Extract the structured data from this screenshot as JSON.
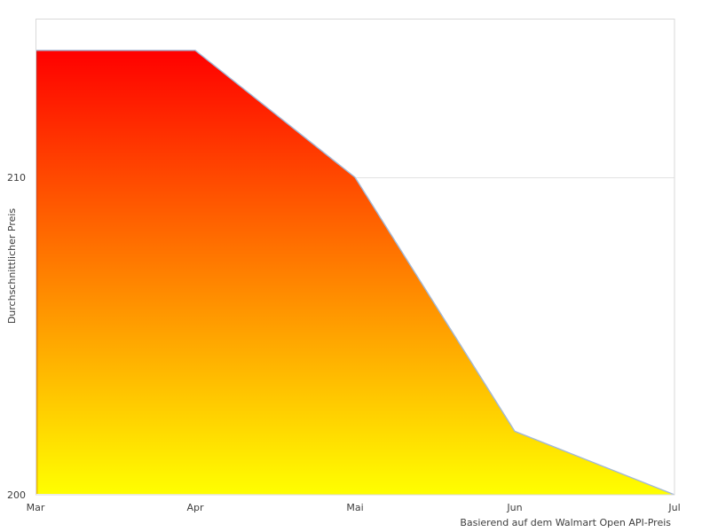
{
  "chart_data": {
    "type": "area",
    "x": [
      "Mar",
      "Apr",
      "Mai",
      "Jun",
      "Jul"
    ],
    "values": [
      214,
      214,
      210,
      202,
      200
    ],
    "xlabel": "Basierend auf dem Walmart Open API-Preis",
    "ylabel": "Durchschnittlicher Preis",
    "yticks": [
      200,
      210
    ],
    "ylim": [
      200,
      215
    ],
    "grid": "horizontal-at-yticks",
    "legend": "none",
    "colors": {
      "fill_top": "#ff0000",
      "fill_bottom": "#ffff00",
      "line": "#a3b8d6",
      "edge_top": "#e01414",
      "edge_bottom": "#eec40a",
      "gridline": "#e2e2e2",
      "plot_border": "#d9d9d9",
      "text": "#3d3d3d",
      "background": "#ffffff"
    }
  }
}
